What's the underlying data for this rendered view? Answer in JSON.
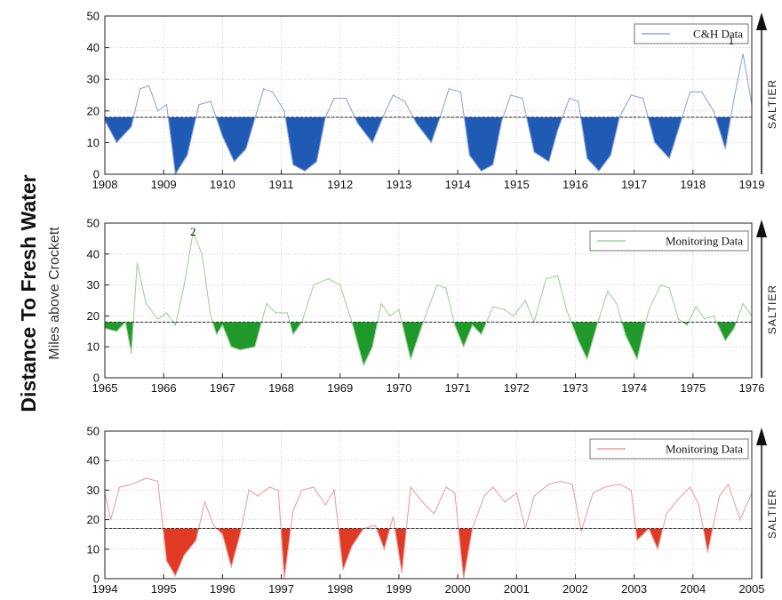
{
  "figure": {
    "ylabel": "Distance To Fresh Water",
    "ysublabel": "Miles above Crockett",
    "arrow_label": "SALTIER"
  },
  "chart_data": [
    {
      "type": "area",
      "legend": "C&H Data",
      "color": "#8fa8e0",
      "fill": "#1f5bb5",
      "threshold": 18,
      "ylim": [
        0,
        50
      ],
      "yticks": [
        "0",
        "10",
        "20",
        "30",
        "40",
        "50"
      ],
      "xlim": [
        1908,
        1919
      ],
      "xticks": [
        "1908",
        "1909",
        "1910",
        "1911",
        "1912",
        "1913",
        "1914",
        "1915",
        "1916",
        "1917",
        "1918",
        "1919"
      ],
      "annotation": {
        "text": "1",
        "x": 1918.65,
        "y": 41
      },
      "x": [
        1908.0,
        1908.2,
        1908.45,
        1908.6,
        1908.75,
        1908.9,
        1909.05,
        1909.2,
        1909.4,
        1909.6,
        1909.8,
        1910.0,
        1910.2,
        1910.4,
        1910.7,
        1910.85,
        1911.05,
        1911.2,
        1911.4,
        1911.6,
        1911.75,
        1911.9,
        1912.1,
        1912.3,
        1912.55,
        1912.75,
        1912.9,
        1913.1,
        1913.3,
        1913.55,
        1913.7,
        1913.85,
        1914.05,
        1914.2,
        1914.4,
        1914.6,
        1914.75,
        1914.9,
        1915.1,
        1915.3,
        1915.55,
        1915.7,
        1915.9,
        1916.05,
        1916.2,
        1916.4,
        1916.6,
        1916.75,
        1916.95,
        1917.15,
        1917.35,
        1917.6,
        1917.75,
        1917.95,
        1918.15,
        1918.35,
        1918.55,
        1918.7,
        1918.85,
        1919.0
      ],
      "y": [
        17,
        10,
        15,
        27,
        28,
        20,
        22,
        0,
        6,
        22,
        23,
        12,
        4,
        8,
        27,
        26,
        20,
        3,
        1,
        4,
        18,
        24,
        24,
        16,
        10,
        19,
        25,
        23,
        16,
        10,
        18,
        27,
        26,
        6,
        1,
        3,
        17,
        25,
        24,
        7,
        4,
        14,
        24,
        23,
        5,
        1,
        6,
        18,
        25,
        24,
        10,
        5,
        14,
        26,
        26,
        20,
        8,
        24,
        38,
        22
      ]
    },
    {
      "type": "area",
      "legend": "Monitoring Data",
      "color": "#9fd49a",
      "fill": "#1f9a2a",
      "threshold": 18,
      "ylim": [
        0,
        50
      ],
      "yticks": [
        "0",
        "10",
        "20",
        "30",
        "40",
        "50"
      ],
      "xlim": [
        1965,
        1976
      ],
      "xticks": [
        "1965",
        "1966",
        "1967",
        "1968",
        "1969",
        "1970",
        "1971",
        "1972",
        "1973",
        "1974",
        "1975",
        "1976"
      ],
      "annotation": {
        "text": "2",
        "x": 1966.5,
        "y": 46
      },
      "x": [
        1965.0,
        1965.2,
        1965.35,
        1965.45,
        1965.55,
        1965.7,
        1965.9,
        1966.05,
        1966.2,
        1966.35,
        1966.5,
        1966.65,
        1966.8,
        1966.9,
        1967.0,
        1967.15,
        1967.3,
        1967.55,
        1967.75,
        1967.9,
        1968.1,
        1968.2,
        1968.35,
        1968.55,
        1968.8,
        1969.0,
        1969.2,
        1969.4,
        1969.55,
        1969.7,
        1969.85,
        1970.0,
        1970.2,
        1970.45,
        1970.65,
        1970.8,
        1970.95,
        1971.1,
        1971.25,
        1971.4,
        1971.6,
        1971.8,
        1971.95,
        1972.15,
        1972.3,
        1972.5,
        1972.7,
        1972.85,
        1973.05,
        1973.2,
        1973.4,
        1973.55,
        1973.7,
        1973.85,
        1974.05,
        1974.25,
        1974.45,
        1974.6,
        1974.75,
        1974.9,
        1975.05,
        1975.2,
        1975.35,
        1975.55,
        1975.7,
        1975.85,
        1976.0
      ],
      "y": [
        16,
        15,
        18,
        8,
        37,
        24,
        19,
        21,
        17,
        30,
        47,
        40,
        20,
        14,
        17,
        10,
        9,
        10,
        24,
        21,
        21,
        14,
        18,
        30,
        32,
        30,
        18,
        4,
        10,
        24,
        20,
        22,
        6,
        20,
        30,
        29,
        17,
        10,
        17,
        14,
        23,
        22,
        20,
        25,
        18,
        32,
        33,
        22,
        12,
        6,
        19,
        28,
        24,
        14,
        6,
        22,
        30,
        29,
        19,
        17,
        23,
        19,
        20,
        12,
        16,
        24,
        20
      ]
    },
    {
      "type": "area",
      "legend": "Monitoring Data",
      "color": "#f0a0a0",
      "fill": "#e03a22",
      "threshold": 17,
      "ylim": [
        0,
        50
      ],
      "yticks": [
        "0",
        "10",
        "20",
        "30",
        "40",
        "50"
      ],
      "xlim": [
        1994,
        2005
      ],
      "xticks": [
        "1994",
        "1995",
        "1996",
        "1997",
        "1998",
        "1999",
        "2000",
        "2001",
        "2002",
        "2003",
        "2004",
        "2005"
      ],
      "annotation": null,
      "x": [
        1994.0,
        1994.1,
        1994.25,
        1994.45,
        1994.7,
        1994.9,
        1995.05,
        1995.2,
        1995.35,
        1995.55,
        1995.7,
        1995.85,
        1996.0,
        1996.15,
        1996.3,
        1996.45,
        1996.6,
        1996.8,
        1996.95,
        1997.05,
        1997.2,
        1997.35,
        1997.55,
        1997.75,
        1997.9,
        1998.05,
        1998.2,
        1998.4,
        1998.6,
        1998.75,
        1998.9,
        1999.05,
        1999.2,
        1999.4,
        1999.6,
        1999.8,
        1999.95,
        2000.1,
        2000.25,
        2000.45,
        2000.6,
        2000.8,
        2001.0,
        2001.15,
        2001.3,
        2001.55,
        2001.75,
        2001.95,
        2002.1,
        2002.3,
        2002.5,
        2002.75,
        2002.95,
        2003.05,
        2003.25,
        2003.4,
        2003.55,
        2003.75,
        2003.95,
        2004.1,
        2004.25,
        2004.45,
        2004.6,
        2004.8,
        2005.0
      ],
      "y": [
        29,
        20,
        31,
        32,
        34,
        33,
        6,
        1,
        8,
        13,
        26,
        18,
        15,
        4,
        15,
        30,
        28,
        31,
        30,
        0,
        23,
        30,
        31,
        25,
        30,
        3,
        11,
        17,
        18,
        10,
        21,
        2,
        31,
        26,
        22,
        31,
        29,
        0,
        17,
        28,
        31,
        26,
        29,
        17,
        28,
        32,
        33,
        32,
        16,
        29,
        31,
        32,
        30,
        13,
        17,
        10,
        22,
        27,
        31,
        25,
        9,
        28,
        32,
        20,
        29
      ]
    }
  ]
}
